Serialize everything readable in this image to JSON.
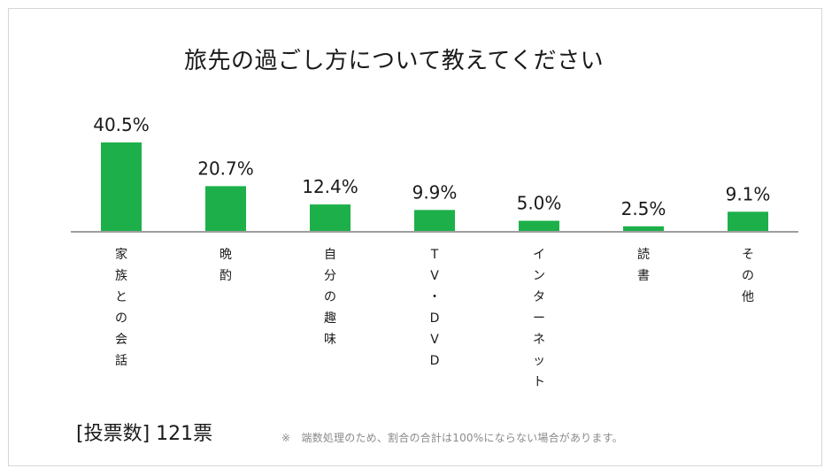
{
  "chart_data": {
    "type": "bar",
    "title": "旅先の過ごし方について教えてください",
    "categories": [
      "家族との会話",
      "晩酌",
      "自分の趣味",
      "TV・DVD",
      "インターネット",
      "読書",
      "その他"
    ],
    "category_labels": [
      [
        "家",
        "族",
        "と",
        "の",
        "会",
        "話"
      ],
      [
        "晩",
        "酌"
      ],
      [
        "自",
        "分",
        "の",
        "趣",
        "味"
      ],
      [
        "T",
        "V",
        "・",
        "D",
        "V",
        "D"
      ],
      [
        "イ",
        "ン",
        "タ",
        "ー",
        "ネ",
        "ッ",
        "ト"
      ],
      [
        "読",
        "書"
      ],
      [
        "そ",
        "の",
        "他"
      ]
    ],
    "values": [
      40.5,
      20.7,
      12.4,
      9.9,
      5.0,
      2.5,
      9.1
    ],
    "value_labels": [
      "40.5%",
      "20.7%",
      "12.4%",
      "9.9%",
      "5.0%",
      "2.5%",
      "9.1%"
    ],
    "ylim": [
      0,
      40.5
    ],
    "grid": false,
    "bar_color": "#1db04a",
    "axis_color": "#9e9e9e"
  },
  "footer": {
    "votes": "[投票数] 121票",
    "note": "※　端数処理のため、割合の合計は100%にならない場合があります。"
  }
}
